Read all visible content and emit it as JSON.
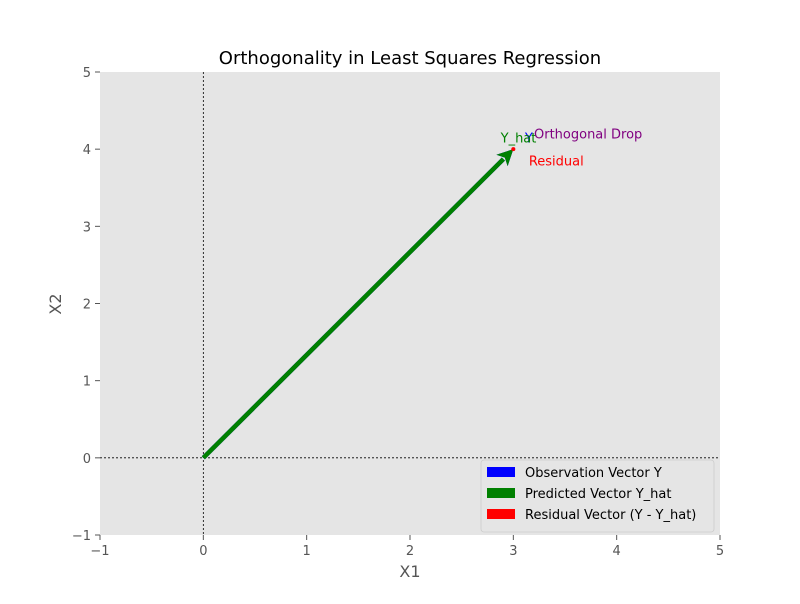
{
  "chart_data": {
    "type": "vector",
    "title": "Orthogonality in Least Squares Regression",
    "xlabel": "X1",
    "ylabel": "X2",
    "xlim": [
      -1,
      5
    ],
    "ylim": [
      -1,
      5
    ],
    "xticks": [
      "−1",
      "0",
      "1",
      "2",
      "3",
      "4",
      "5"
    ],
    "yticks": [
      "−1",
      "0",
      "1",
      "2",
      "3",
      "4",
      "5"
    ],
    "xtick_values": [
      -1,
      0,
      1,
      2,
      3,
      4,
      5
    ],
    "ytick_values": [
      -1,
      0,
      1,
      2,
      3,
      4,
      5
    ],
    "grid": false,
    "background": "#e5e5e5",
    "reference_lines": [
      {
        "axis": "x",
        "value": 0,
        "style": "dotted",
        "color": "#000000"
      },
      {
        "axis": "y",
        "value": 0,
        "style": "dotted",
        "color": "#000000"
      }
    ],
    "vectors": [
      {
        "name": "Observation Vector Y",
        "color": "#0000ff",
        "from": [
          0,
          0
        ],
        "to": [
          3,
          4
        ]
      },
      {
        "name": "Predicted Vector Y_hat",
        "color": "#008000",
        "from": [
          0,
          0
        ],
        "to": [
          3,
          4
        ]
      },
      {
        "name": "Residual Vector (Y - Y_hat)",
        "color": "#ff0000",
        "from": [
          3,
          4
        ],
        "to": [
          3,
          4
        ]
      }
    ],
    "annotations": [
      {
        "text": "Y",
        "x": 3.15,
        "y": 4.15,
        "color": "#0000ff"
      },
      {
        "text": "Y_hat",
        "x": 3.05,
        "y": 4.15,
        "color": "#008000"
      },
      {
        "text": "Residual",
        "x": 3.15,
        "y": 3.85,
        "color": "#ff0000"
      },
      {
        "text": "Orthogonal Drop",
        "x": 3.2,
        "y": 4.2,
        "color": "#800080"
      }
    ],
    "legend": {
      "position": "lower right",
      "entries": [
        {
          "label": "Observation Vector Y",
          "color": "#0000ff"
        },
        {
          "label": "Predicted Vector Y_hat",
          "color": "#008000"
        },
        {
          "label": "Residual Vector (Y - Y_hat)",
          "color": "#ff0000"
        }
      ]
    }
  }
}
